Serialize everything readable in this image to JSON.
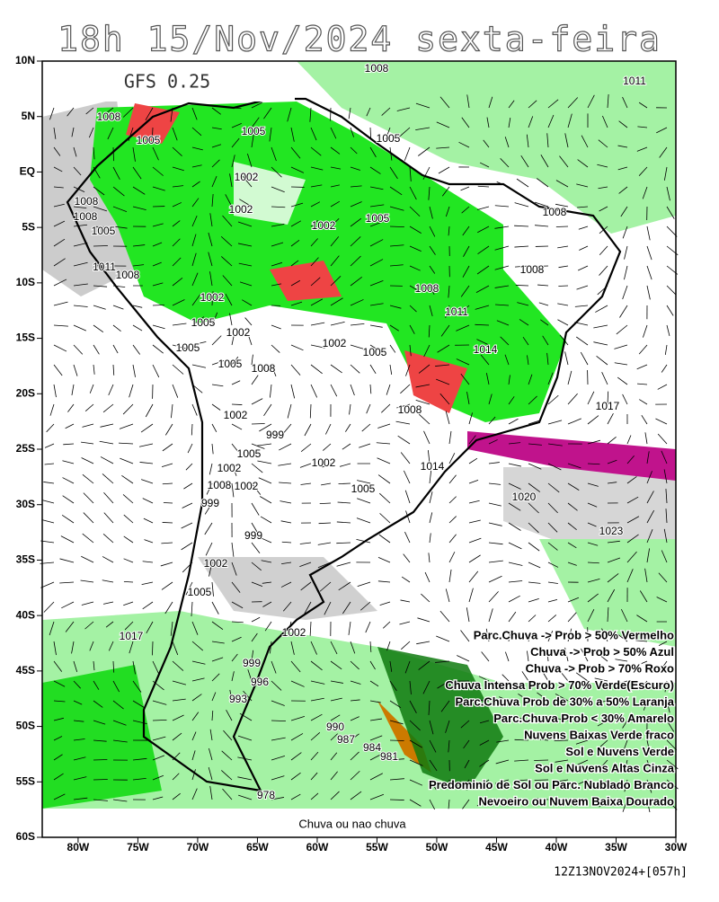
{
  "title": "18h 15/Nov/2024 sexta-feira",
  "model": "GFS 0.25",
  "map": {
    "xlim": [
      -83,
      -30
    ],
    "ylim": [
      -60,
      10
    ],
    "xticks": [
      {
        "value": -80,
        "label": "80W"
      },
      {
        "value": -75,
        "label": "75W"
      },
      {
        "value": -70,
        "label": "70W"
      },
      {
        "value": -65,
        "label": "65W"
      },
      {
        "value": -60,
        "label": "60W"
      },
      {
        "value": -55,
        "label": "55W"
      },
      {
        "value": -50,
        "label": "50W"
      },
      {
        "value": -45,
        "label": "45W"
      },
      {
        "value": -40,
        "label": "40W"
      },
      {
        "value": -35,
        "label": "35W"
      },
      {
        "value": -30,
        "label": "30W"
      }
    ],
    "yticks": [
      {
        "value": 10,
        "label": "10N"
      },
      {
        "value": 5,
        "label": "5N"
      },
      {
        "value": 0,
        "label": "EQ"
      },
      {
        "value": -5,
        "label": "5S"
      },
      {
        "value": -10,
        "label": "10S"
      },
      {
        "value": -15,
        "label": "15S"
      },
      {
        "value": -20,
        "label": "20S"
      },
      {
        "value": -25,
        "label": "25S"
      },
      {
        "value": -30,
        "label": "30S"
      },
      {
        "value": -35,
        "label": "35S"
      },
      {
        "value": -40,
        "label": "40S"
      },
      {
        "value": -45,
        "label": "45S"
      },
      {
        "value": -50,
        "label": "50S"
      },
      {
        "value": -55,
        "label": "55S"
      },
      {
        "value": -60,
        "label": "60S"
      }
    ]
  },
  "isobar_labels": [
    "1008",
    "1011",
    "1008",
    "1005",
    "1005",
    "1005",
    "1002",
    "1002",
    "1008",
    "1008",
    "1005",
    "1002",
    "1005",
    "1008",
    "1011",
    "1008",
    "1008",
    "1002",
    "1008",
    "1011",
    "1005",
    "1002",
    "1002",
    "1005",
    "1014",
    "1005",
    "1005",
    "1008",
    "1008",
    "1017",
    "1002",
    "999",
    "1005",
    "1002",
    "1014",
    "1002",
    "1008",
    "1002",
    "1005",
    "1020",
    "999",
    "1023",
    "999",
    "1002",
    "1005",
    "1002",
    "1017",
    "999",
    "996",
    "993",
    "990",
    "987",
    "984",
    "981",
    "978"
  ],
  "legend": [
    "Parc.Chuva -> Prob > 50% Vermelho",
    "Chuva -> Prob > 50% Azul",
    "Chuva -> Prob > 70% Roxo",
    "Chuva Intensa Prob > 70% Verde(Escuro)",
    "Parc.Chuva Prob de 30% a 50% Laranja",
    "Parc.Chuva Prob < 30% Amarelo",
    "Nuvens Baixas Verde fraco",
    "Sol e Nuvens Verde",
    "Sol e Nuvens Altas Cinza",
    "Predominio de Sol ou Parc. Nublado Branco",
    "Nevoeiro ou Nuvem Baixa Dourado"
  ],
  "footer_label": "Chuva ou nao chuva",
  "run": "12Z13NOV2024+[057h]"
}
